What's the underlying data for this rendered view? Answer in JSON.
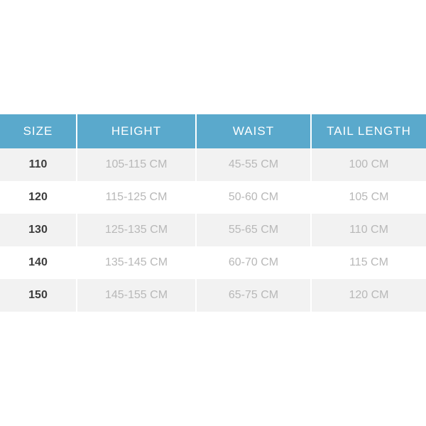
{
  "table": {
    "type": "table",
    "header_bg": "#5aa9cc",
    "header_color": "#ffffff",
    "row_odd_bg": "#f2f2f2",
    "row_even_bg": "#ffffff",
    "size_color": "#3d3d3d",
    "cell_color": "#b8b8b8",
    "header_fontsize": 17,
    "cell_fontsize": 16,
    "columns": [
      {
        "label": "SIZE",
        "width_pct": 18
      },
      {
        "label": "HEIGHT",
        "width_pct": 28
      },
      {
        "label": "WAIST",
        "width_pct": 27
      },
      {
        "label": "TAIL LENGTH",
        "width_pct": 27
      }
    ],
    "rows": [
      {
        "size": "110",
        "height": "105-115 CM",
        "waist": "45-55 CM",
        "tail": "100 CM"
      },
      {
        "size": "120",
        "height": "115-125 CM",
        "waist": "50-60 CM",
        "tail": "105 CM"
      },
      {
        "size": "130",
        "height": "125-135 CM",
        "waist": "55-65 CM",
        "tail": "110 CM"
      },
      {
        "size": "140",
        "height": "135-145 CM",
        "waist": "60-70 CM",
        "tail": "115 CM"
      },
      {
        "size": "150",
        "height": "145-155 CM",
        "waist": "65-75 CM",
        "tail": "120 CM"
      }
    ]
  }
}
